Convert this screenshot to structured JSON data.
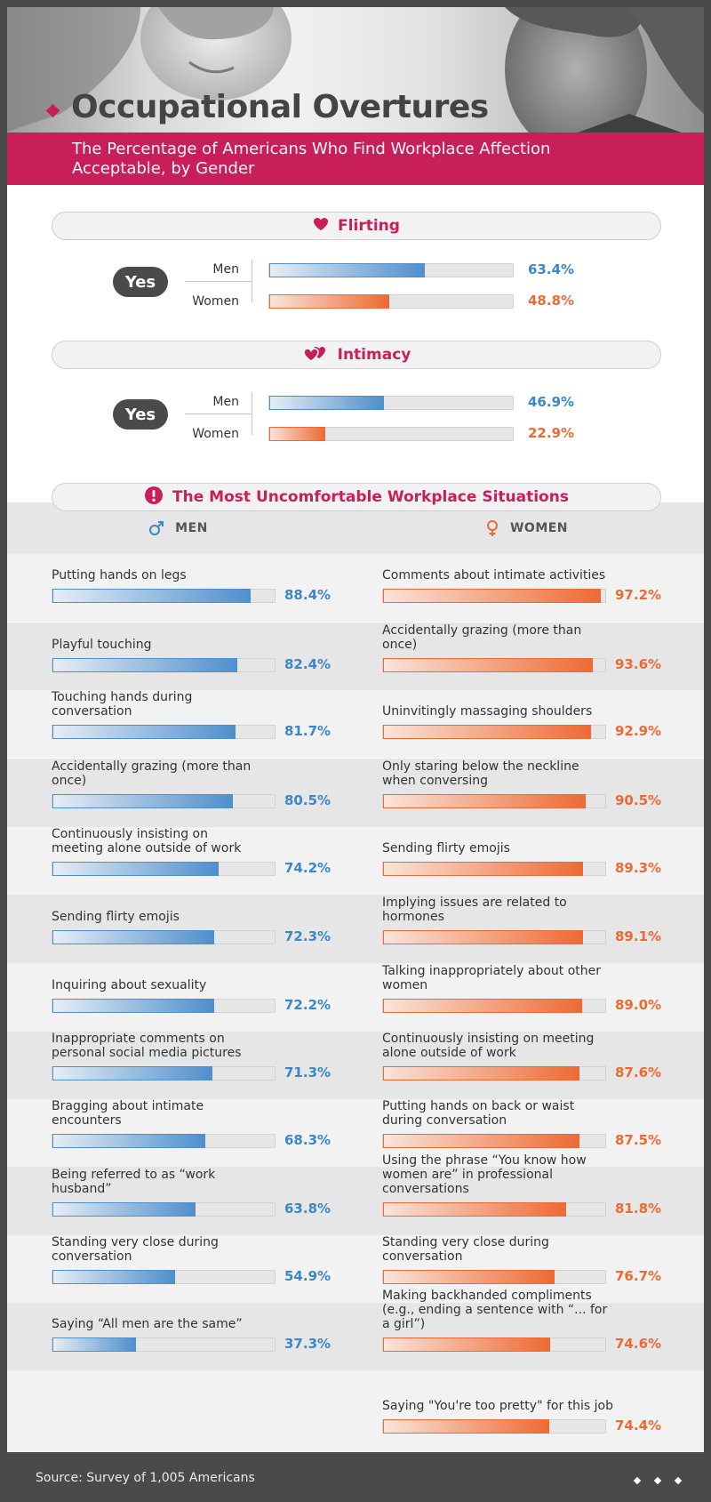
{
  "header": {
    "title": "Occupational Overtures",
    "subtitle": "The Percentage of Americans Who Find Workplace Affection Acceptable, by Gender"
  },
  "colors": {
    "accent": "#c81e5a",
    "men": "#3d86c8",
    "women": "#ee6a34",
    "dark": "#4a4a4a"
  },
  "sections": {
    "flirting": {
      "title": "Flirting",
      "icon": "heart-icon",
      "yes_label": "Yes"
    },
    "intimacy": {
      "title": "Intimacy",
      "icon": "two-hearts-icon",
      "yes_label": "Yes"
    },
    "uncomfortable": {
      "title": "The Most Uncomfortable Workplace Situations",
      "icon": "exclamation-icon"
    }
  },
  "columns": {
    "men": "MEN",
    "women": "WOMEN"
  },
  "chart_data": [
    {
      "type": "bar",
      "title": "Flirting",
      "categories": [
        "Men",
        "Women"
      ],
      "values": [
        63.4,
        48.8
      ],
      "value_labels": [
        "63.4%",
        "48.8%"
      ],
      "ylim": [
        0,
        100
      ]
    },
    {
      "type": "bar",
      "title": "Intimacy",
      "categories": [
        "Men",
        "Women"
      ],
      "values": [
        46.9,
        22.9
      ],
      "value_labels": [
        "46.9%",
        "22.9%"
      ],
      "ylim": [
        0,
        100
      ]
    },
    {
      "type": "bar",
      "title": "The Most Uncomfortable Workplace Situations — MEN",
      "categories": [
        "Putting hands on legs",
        "Playful touching",
        "Touching hands during conversation",
        "Accidentally grazing (more than once)",
        "Continuously insisting on meeting alone outside of work",
        "Sending flirty emojis",
        "Inquiring about sexuality",
        "Inappropriate comments on personal social media pictures",
        "Bragging about intimate encounters",
        "Being referred to as “work husband”",
        "Standing very close during conversation",
        "Saying “All men are the same”"
      ],
      "values": [
        88.4,
        82.4,
        81.7,
        80.5,
        74.2,
        72.3,
        72.2,
        71.3,
        68.3,
        63.8,
        54.9,
        37.3
      ],
      "value_labels": [
        "88.4%",
        "82.4%",
        "81.7%",
        "80.5%",
        "74.2%",
        "72.3%",
        "72.2%",
        "71.3%",
        "68.3%",
        "63.8%",
        "54.9%",
        "37.3%"
      ],
      "ylim": [
        0,
        100
      ]
    },
    {
      "type": "bar",
      "title": "The Most Uncomfortable Workplace Situations — WOMEN",
      "categories": [
        "Comments about intimate activities",
        "Accidentally grazing (more than once)",
        "Uninvitingly massaging shoulders",
        "Only staring below the neckline when conversing",
        "Sending flirty emojis",
        "Implying issues are related to hormones",
        "Talking inappropriately about other women",
        "Continuously insisting on meeting alone outside of work",
        "Putting hands on back or waist during conversation",
        "Using the phrase “You know how women are” in professional conversations",
        "Standing very close during conversation",
        "Making backhanded compliments (e.g., ending a sentence with “... for a girl”)",
        "Saying \"You're too pretty\" for this job"
      ],
      "values": [
        97.2,
        93.6,
        92.9,
        90.5,
        89.3,
        89.1,
        89.0,
        87.6,
        87.5,
        81.8,
        76.7,
        74.6,
        74.4
      ],
      "value_labels": [
        "97.2%",
        "93.6%",
        "92.9%",
        "90.5%",
        "89.3%",
        "89.1%",
        "89.0%",
        "87.6%",
        "87.5%",
        "81.8%",
        "76.7%",
        "74.6%",
        "74.4%"
      ],
      "ylim": [
        0,
        100
      ]
    }
  ],
  "footer": {
    "source": "Source: Survey of 1,005 Americans"
  }
}
